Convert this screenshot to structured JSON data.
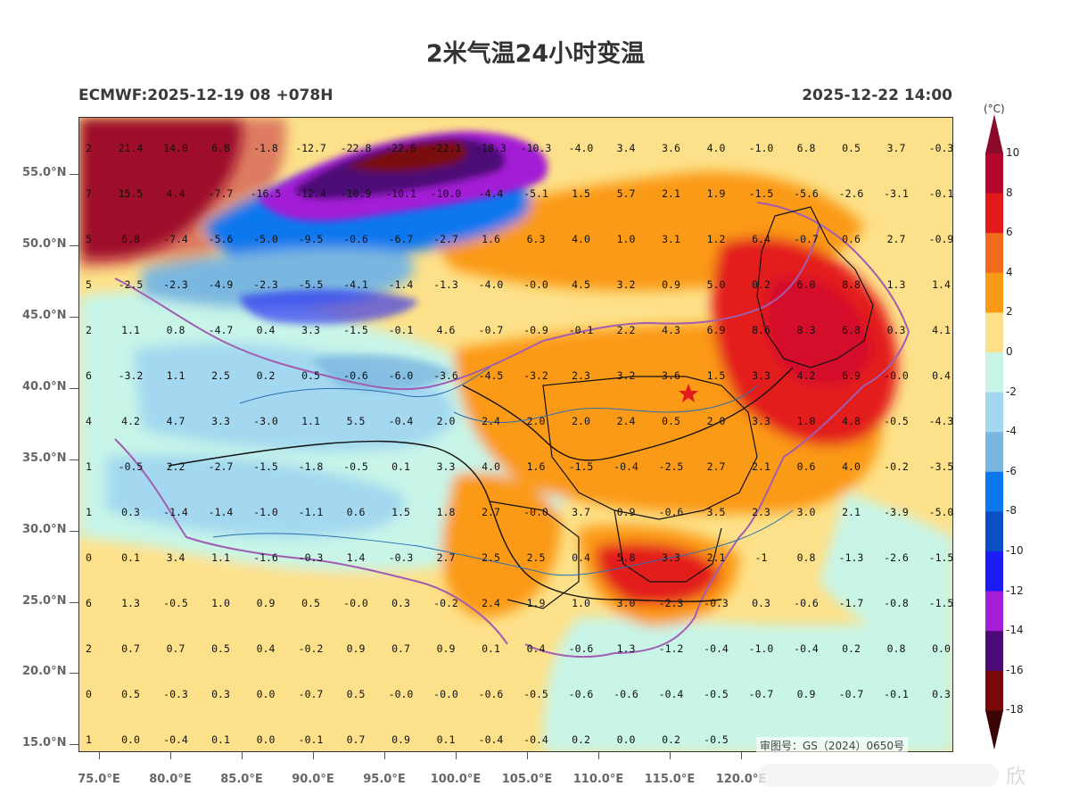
{
  "title": "2米气温24小时变温",
  "subtitle_left": "ECMWF:2025-12-19 08 +078H",
  "subtitle_right": "2025-12-22 14:00",
  "approval_text": "审图号：GS（2024）0650号",
  "watermark": "欣",
  "lat_labels": [
    "55.0°N",
    "50.0°N",
    "45.0°N",
    "40.0°N",
    "35.0°N",
    "30.0°N",
    "25.0°N",
    "20.0°N",
    "15.0°N"
  ],
  "lon_labels": [
    "75.0°E",
    "80.0°E",
    "85.0°E",
    "90.0°E",
    "95.0°E",
    "100.0°E",
    "105.0°E",
    "110.0°E",
    "115.0°E",
    "120.0°E"
  ],
  "colorbar": {
    "unit": "(°C)",
    "labels": [
      "10",
      "8",
      "6",
      "4",
      "2",
      "0",
      "-2",
      "-4",
      "-6",
      "-8",
      "-10",
      "-12",
      "-14",
      "-16",
      "-18"
    ],
    "colors": [
      "#b5062f",
      "#e31a1c",
      "#f26b1d",
      "#fb9a15",
      "#fde18a",
      "#c8f5e8",
      "#a3d8f0",
      "#7ab7e0",
      "#0c78ee",
      "#0a4fc4",
      "#1b1bf5",
      "#a31ed6",
      "#4b0a75",
      "#7a0a0a"
    ],
    "top_arrow": "#8b0a2a",
    "bottom_arrow": "#3a0404"
  },
  "grid_values": [
    [
      "2",
      "21.4",
      "14.0",
      "6.8",
      "-1.8",
      "-12.7",
      "-22.8",
      "-22.6",
      "-22.1",
      "-18.3",
      "-10.3",
      "-4.0",
      "3.4",
      "3.6",
      "4.0",
      "-1.0",
      "6.8",
      "0.5",
      "3.7",
      "-0.3"
    ],
    [
      "7",
      "15.5",
      "4.4",
      "-7.7",
      "-16.5",
      "-12.4",
      "-10.9",
      "-10.1",
      "-10.0",
      "-4.4",
      "-5.1",
      "1.5",
      "5.7",
      "2.1",
      "1.9",
      "-1.5",
      "-5.6",
      "-2.6",
      "-3.1",
      "-0.1"
    ],
    [
      "5",
      "6.8",
      "-7.4",
      "-5.6",
      "-5.0",
      "-9.5",
      "-0.6",
      "-6.7",
      "-2.7",
      "1.6",
      "6.3",
      "4.0",
      "1.0",
      "3.1",
      "1.2",
      "6.4",
      "-0.7",
      "0.6",
      "2.7",
      "-0.9"
    ],
    [
      "5",
      "-2.5",
      "-2.3",
      "-4.9",
      "-2.3",
      "-5.5",
      "-4.1",
      "-1.4",
      "-1.3",
      "-4.0",
      "-0.0",
      "4.5",
      "3.2",
      "0.9",
      "5.0",
      "0.2",
      "6.0",
      "8.8",
      "1.3",
      "1.4"
    ],
    [
      "2",
      "1.1",
      "0.8",
      "-4.7",
      "0.4",
      "3.3",
      "-1.5",
      "-0.1",
      "4.6",
      "-0.7",
      "-0.9",
      "-0.1",
      "2.2",
      "4.3",
      "6.9",
      "8.6",
      "8.3",
      "6.8",
      "0.3",
      "4.1"
    ],
    [
      "6",
      "-3.2",
      "1.1",
      "2.5",
      "0.2",
      "0.5",
      "-0.6",
      "-6.0",
      "-3.6",
      "-4.5",
      "-3.2",
      "2.3",
      "3.2",
      "3.6",
      "1.5",
      "3.3",
      "4.2",
      "6.9",
      "-0.0",
      "0.4"
    ],
    [
      "4",
      "4.2",
      "4.7",
      "3.3",
      "-3.0",
      "1.1",
      "5.5",
      "-0.4",
      "2.0",
      "2.4",
      "2.0",
      "2.0",
      "2.4",
      "0.5",
      "2.0",
      "3.3",
      "1.0",
      "4.8",
      "-0.5",
      "-4.3"
    ],
    [
      "1",
      "-0.5",
      "2.2",
      "-2.7",
      "-1.5",
      "-1.8",
      "-0.5",
      "0.1",
      "3.3",
      "4.0",
      "1.6",
      "-1.5",
      "-0.4",
      "-2.5",
      "2.7",
      "2.1",
      "0.6",
      "4.0",
      "-0.2",
      "-3.5"
    ],
    [
      "1",
      "0.3",
      "-1.4",
      "-1.4",
      "-1.0",
      "-1.1",
      "0.6",
      "1.5",
      "1.8",
      "2.7",
      "-0.0",
      "3.7",
      "0.9",
      "-0.6",
      "3.5",
      "2.3",
      "3.0",
      "2.1",
      "-3.9",
      "-5.0"
    ],
    [
      "0",
      "0.1",
      "3.4",
      "1.1",
      "-1.6",
      "-0.3",
      "1.4",
      "-0.3",
      "2.7",
      "2.5",
      "2.5",
      "0.4",
      "5.8",
      "3.3",
      "2.1",
      "-1",
      "0.8",
      "-1.3",
      "-2.6",
      "-1.5"
    ],
    [
      "6",
      "1.3",
      "-0.5",
      "1.0",
      "0.9",
      "0.5",
      "-0.0",
      "0.3",
      "-0.2",
      "2.4",
      "1.9",
      "1.0",
      "3.0",
      "-2.3",
      "-0.3",
      "0.3",
      "-0.6",
      "-1.7",
      "-0.8",
      "-1.5"
    ],
    [
      "2",
      "0.7",
      "0.7",
      "0.5",
      "0.4",
      "-0.2",
      "0.9",
      "0.7",
      "0.9",
      "0.1",
      "0.4",
      "-0.6",
      "1.3",
      "-1.2",
      "-0.4",
      "-1.0",
      "-0.4",
      "0.2",
      "0.8",
      "0.0"
    ],
    [
      "0",
      "0.5",
      "-0.3",
      "0.3",
      "0.0",
      "-0.7",
      "0.5",
      "-0.0",
      "-0.0",
      "-0.6",
      "-0.5",
      "-0.6",
      "-0.6",
      "-0.4",
      "-0.5",
      "-0.7",
      "0.9",
      "-0.7",
      "-0.1",
      "0.3"
    ],
    [
      "1",
      "0.0",
      "-0.4",
      "0.1",
      "0.0",
      "-0.1",
      "0.7",
      "0.9",
      "0.1",
      "-0.4",
      "-0.4",
      "0.2",
      "0.0",
      "0.2",
      "-0.5",
      "",
      "",
      "",
      "",
      ""
    ]
  ]
}
